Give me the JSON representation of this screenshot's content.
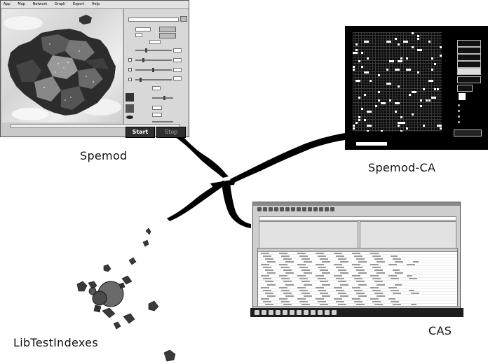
{
  "labels": {
    "spemod": "Spemod",
    "spemod_ca": "Spemod-CA",
    "cas": "CAS",
    "libtestindexes": "LibTestIndexes"
  },
  "spemod": {
    "menu": [
      "App",
      "Map",
      "Network",
      "Graph",
      "Export",
      "Help"
    ],
    "start_label": "Start",
    "stop_label": "Stop"
  },
  "colors": {
    "background": "#ffffff",
    "window_gray": "#c9c9c9",
    "ca_background": "#000000",
    "connector": "#000000"
  }
}
